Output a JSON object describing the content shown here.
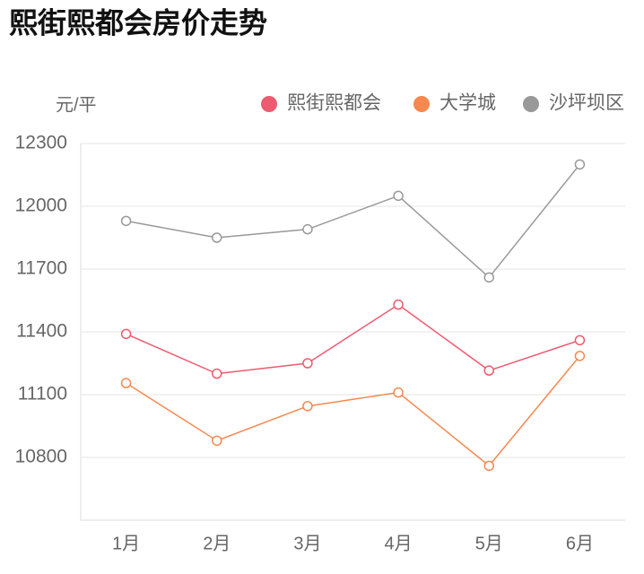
{
  "chart_data": {
    "type": "line",
    "title": "熙街熙都会房价走势",
    "y_label": "元/平",
    "categories": [
      "1月",
      "2月",
      "3月",
      "4月",
      "5月",
      "6月"
    ],
    "series": [
      {
        "name": "熙街熙都会",
        "color": "#ee5a6f",
        "values": [
          11390,
          11200,
          11250,
          11530,
          11215,
          11360
        ]
      },
      {
        "name": "大学城",
        "color": "#f5884f",
        "values": [
          11155,
          10880,
          11045,
          11110,
          10760,
          11285
        ]
      },
      {
        "name": "沙坪坝区",
        "color": "#999999",
        "values": [
          11930,
          11850,
          11890,
          12050,
          11660,
          12200
        ]
      }
    ],
    "ylim": [
      10500,
      12300
    ],
    "yticks": [
      10800,
      11100,
      11400,
      11700,
      12000,
      12300
    ],
    "grid": true,
    "legend": "top-right"
  }
}
